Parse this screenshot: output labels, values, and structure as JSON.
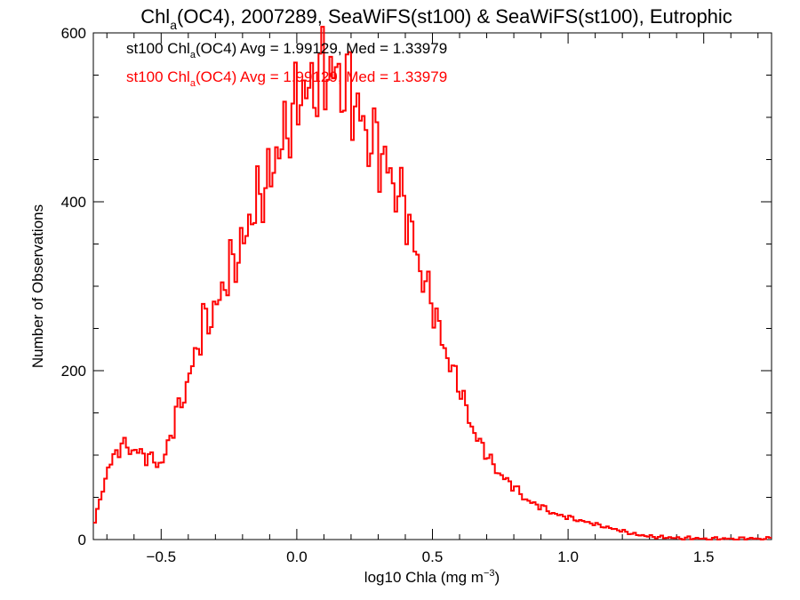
{
  "chart_data": {
    "type": "line",
    "title_parts": {
      "pre": "Chl",
      "sub": "a",
      "post": "(OC4), 2007289, SeaWiFS(st100) & SeaWiFS(st100), Eutrophic"
    },
    "xlabel_parts": {
      "pre": "log10 Chla (mg m",
      "sup": "−3",
      "post": ")"
    },
    "ylabel": "Number of Observations",
    "xlim": [
      -0.75,
      1.75
    ],
    "ylim": [
      0,
      600
    ],
    "x_ticks": [
      {
        "v": -0.5,
        "label": "−0.5"
      },
      {
        "v": 0.0,
        "label": "0.0"
      },
      {
        "v": 0.5,
        "label": "0.5"
      },
      {
        "v": 1.0,
        "label": "1.0"
      },
      {
        "v": 1.5,
        "label": "1.5"
      }
    ],
    "y_ticks": [
      {
        "v": 0,
        "label": "0"
      },
      {
        "v": 200,
        "label": "200"
      },
      {
        "v": 400,
        "label": "400"
      },
      {
        "v": 600,
        "label": "600"
      }
    ],
    "grid": false,
    "bin_width": 0.01,
    "annotations": [
      {
        "pre": "st100 Chl",
        "sub": "a",
        "post": "(OC4) Avg = 1.99129, Med = 1.33979",
        "color": "#000000"
      },
      {
        "pre": "st100 Chl",
        "sub": "a",
        "post": "(OC4) Avg = 1.99129, Med = 1.33979",
        "color": "#ff0000"
      }
    ],
    "series": [
      {
        "color": "#ff0000",
        "step": true,
        "x": [
          -0.75,
          -0.7,
          -0.65,
          -0.6,
          -0.55,
          -0.5,
          -0.45,
          -0.4,
          -0.35,
          -0.3,
          -0.25,
          -0.2,
          -0.15,
          -0.1,
          -0.05,
          0.0,
          0.05,
          0.1,
          0.15,
          0.2,
          0.25,
          0.3,
          0.35,
          0.4,
          0.45,
          0.5,
          0.55,
          0.6,
          0.65,
          0.7,
          0.75,
          0.8,
          0.85,
          0.9,
          0.95,
          1.0,
          1.05,
          1.1,
          1.15,
          1.2,
          1.25,
          1.3,
          1.35,
          1.4,
          1.45,
          1.5,
          1.55,
          1.6,
          1.65,
          1.7,
          1.75
        ],
        "values": [
          20,
          85,
          110,
          105,
          95,
          90,
          145,
          195,
          255,
          280,
          325,
          360,
          410,
          440,
          490,
          530,
          545,
          560,
          555,
          525,
          485,
          455,
          425,
          380,
          320,
          265,
          215,
          170,
          125,
          95,
          75,
          60,
          45,
          38,
          30,
          26,
          22,
          18,
          14,
          10,
          6,
          4,
          3,
          2,
          2,
          1,
          1,
          1,
          1,
          1,
          1
        ]
      }
    ]
  }
}
